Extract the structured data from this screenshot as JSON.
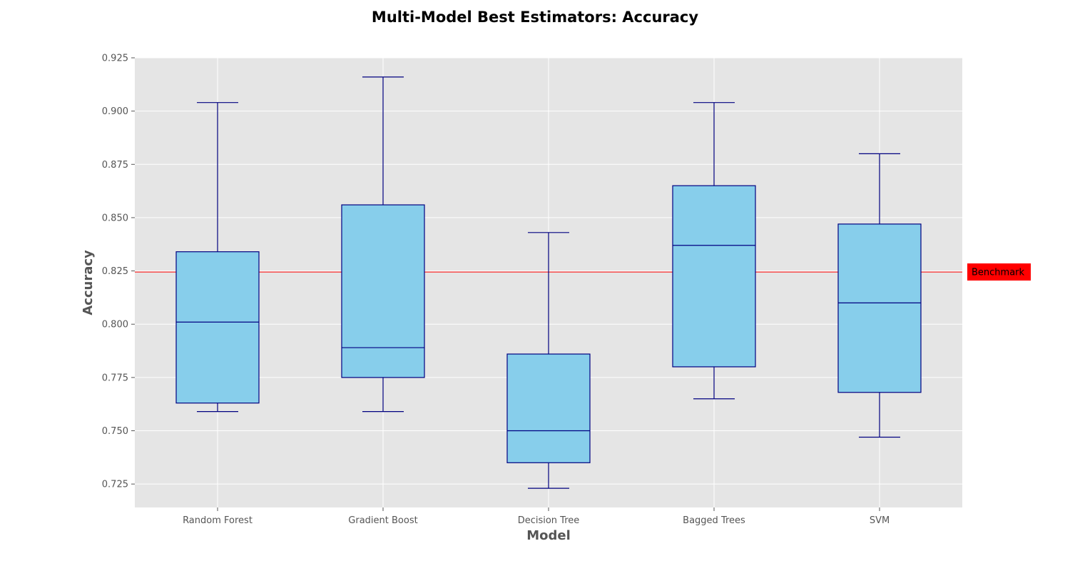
{
  "chart_data": {
    "type": "box",
    "title": "Multi-Model Best Estimators: Accuracy",
    "xlabel": "Model",
    "ylabel": "Accuracy",
    "ylim": [
      0.714,
      0.925
    ],
    "yticks": [
      "0.725",
      "0.750",
      "0.775",
      "0.800",
      "0.825",
      "0.850",
      "0.875",
      "0.900",
      "0.925"
    ],
    "grid": true,
    "categories": [
      "Random Forest",
      "Gradient Boost",
      "Decision Tree",
      "Bagged Trees",
      "SVM"
    ],
    "boxes": [
      {
        "whisker_low": 0.759,
        "q1": 0.763,
        "median": 0.801,
        "q3": 0.834,
        "whisker_high": 0.904
      },
      {
        "whisker_low": 0.759,
        "q1": 0.775,
        "median": 0.789,
        "q3": 0.856,
        "whisker_high": 0.916
      },
      {
        "whisker_low": 0.723,
        "q1": 0.735,
        "median": 0.75,
        "q3": 0.786,
        "whisker_high": 0.843
      },
      {
        "whisker_low": 0.765,
        "q1": 0.78,
        "median": 0.837,
        "q3": 0.865,
        "whisker_high": 0.904
      },
      {
        "whisker_low": 0.747,
        "q1": 0.768,
        "median": 0.81,
        "q3": 0.847,
        "whisker_high": 0.88
      }
    ],
    "benchmark": {
      "label": "Benchmark",
      "value": 0.8245
    },
    "colors": {
      "plot_background": "#e5e5e5",
      "grid": "#ffffff",
      "box_fill": "#87ceeb",
      "box_edge": "#000080",
      "benchmark_line": "#ff0000",
      "benchmark_label_bg": "#ff0000"
    }
  }
}
